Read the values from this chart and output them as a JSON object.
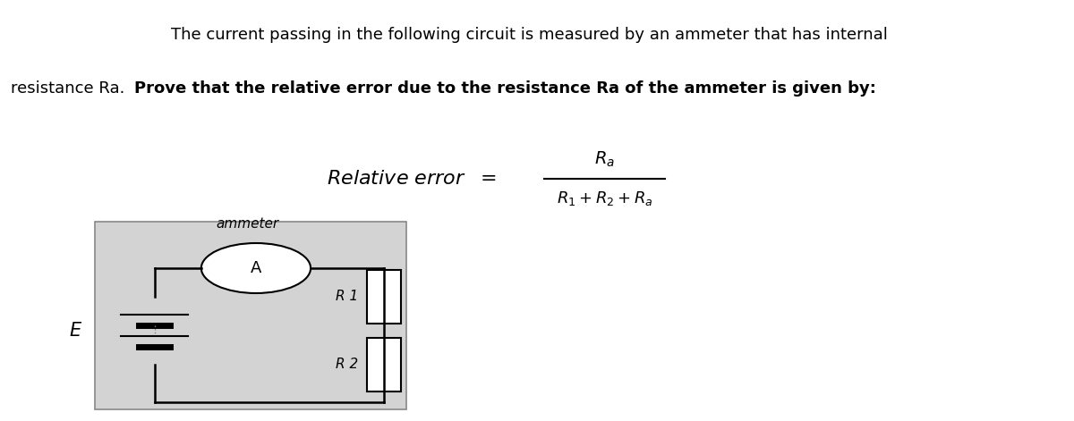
{
  "fig_width": 12.0,
  "fig_height": 4.71,
  "dpi": 100,
  "bg_color": "#ffffff",
  "text_line1": "The current passing in the following circuit is measured by an ammeter that has internal",
  "text_line2_normal": "resistance Ra.  ",
  "text_line2_bold": "Prove that the relative error due to the resistance Ra of the ammeter is given by:",
  "circuit_bg": "#d3d3d3",
  "circuit_edge": "#888888",
  "wire_color": "#000000",
  "wire_lw": 1.8,
  "label_E": "E",
  "label_ammeter": "ammeter",
  "label_A": "A",
  "label_R1": "R 1",
  "label_R2": "R 2"
}
